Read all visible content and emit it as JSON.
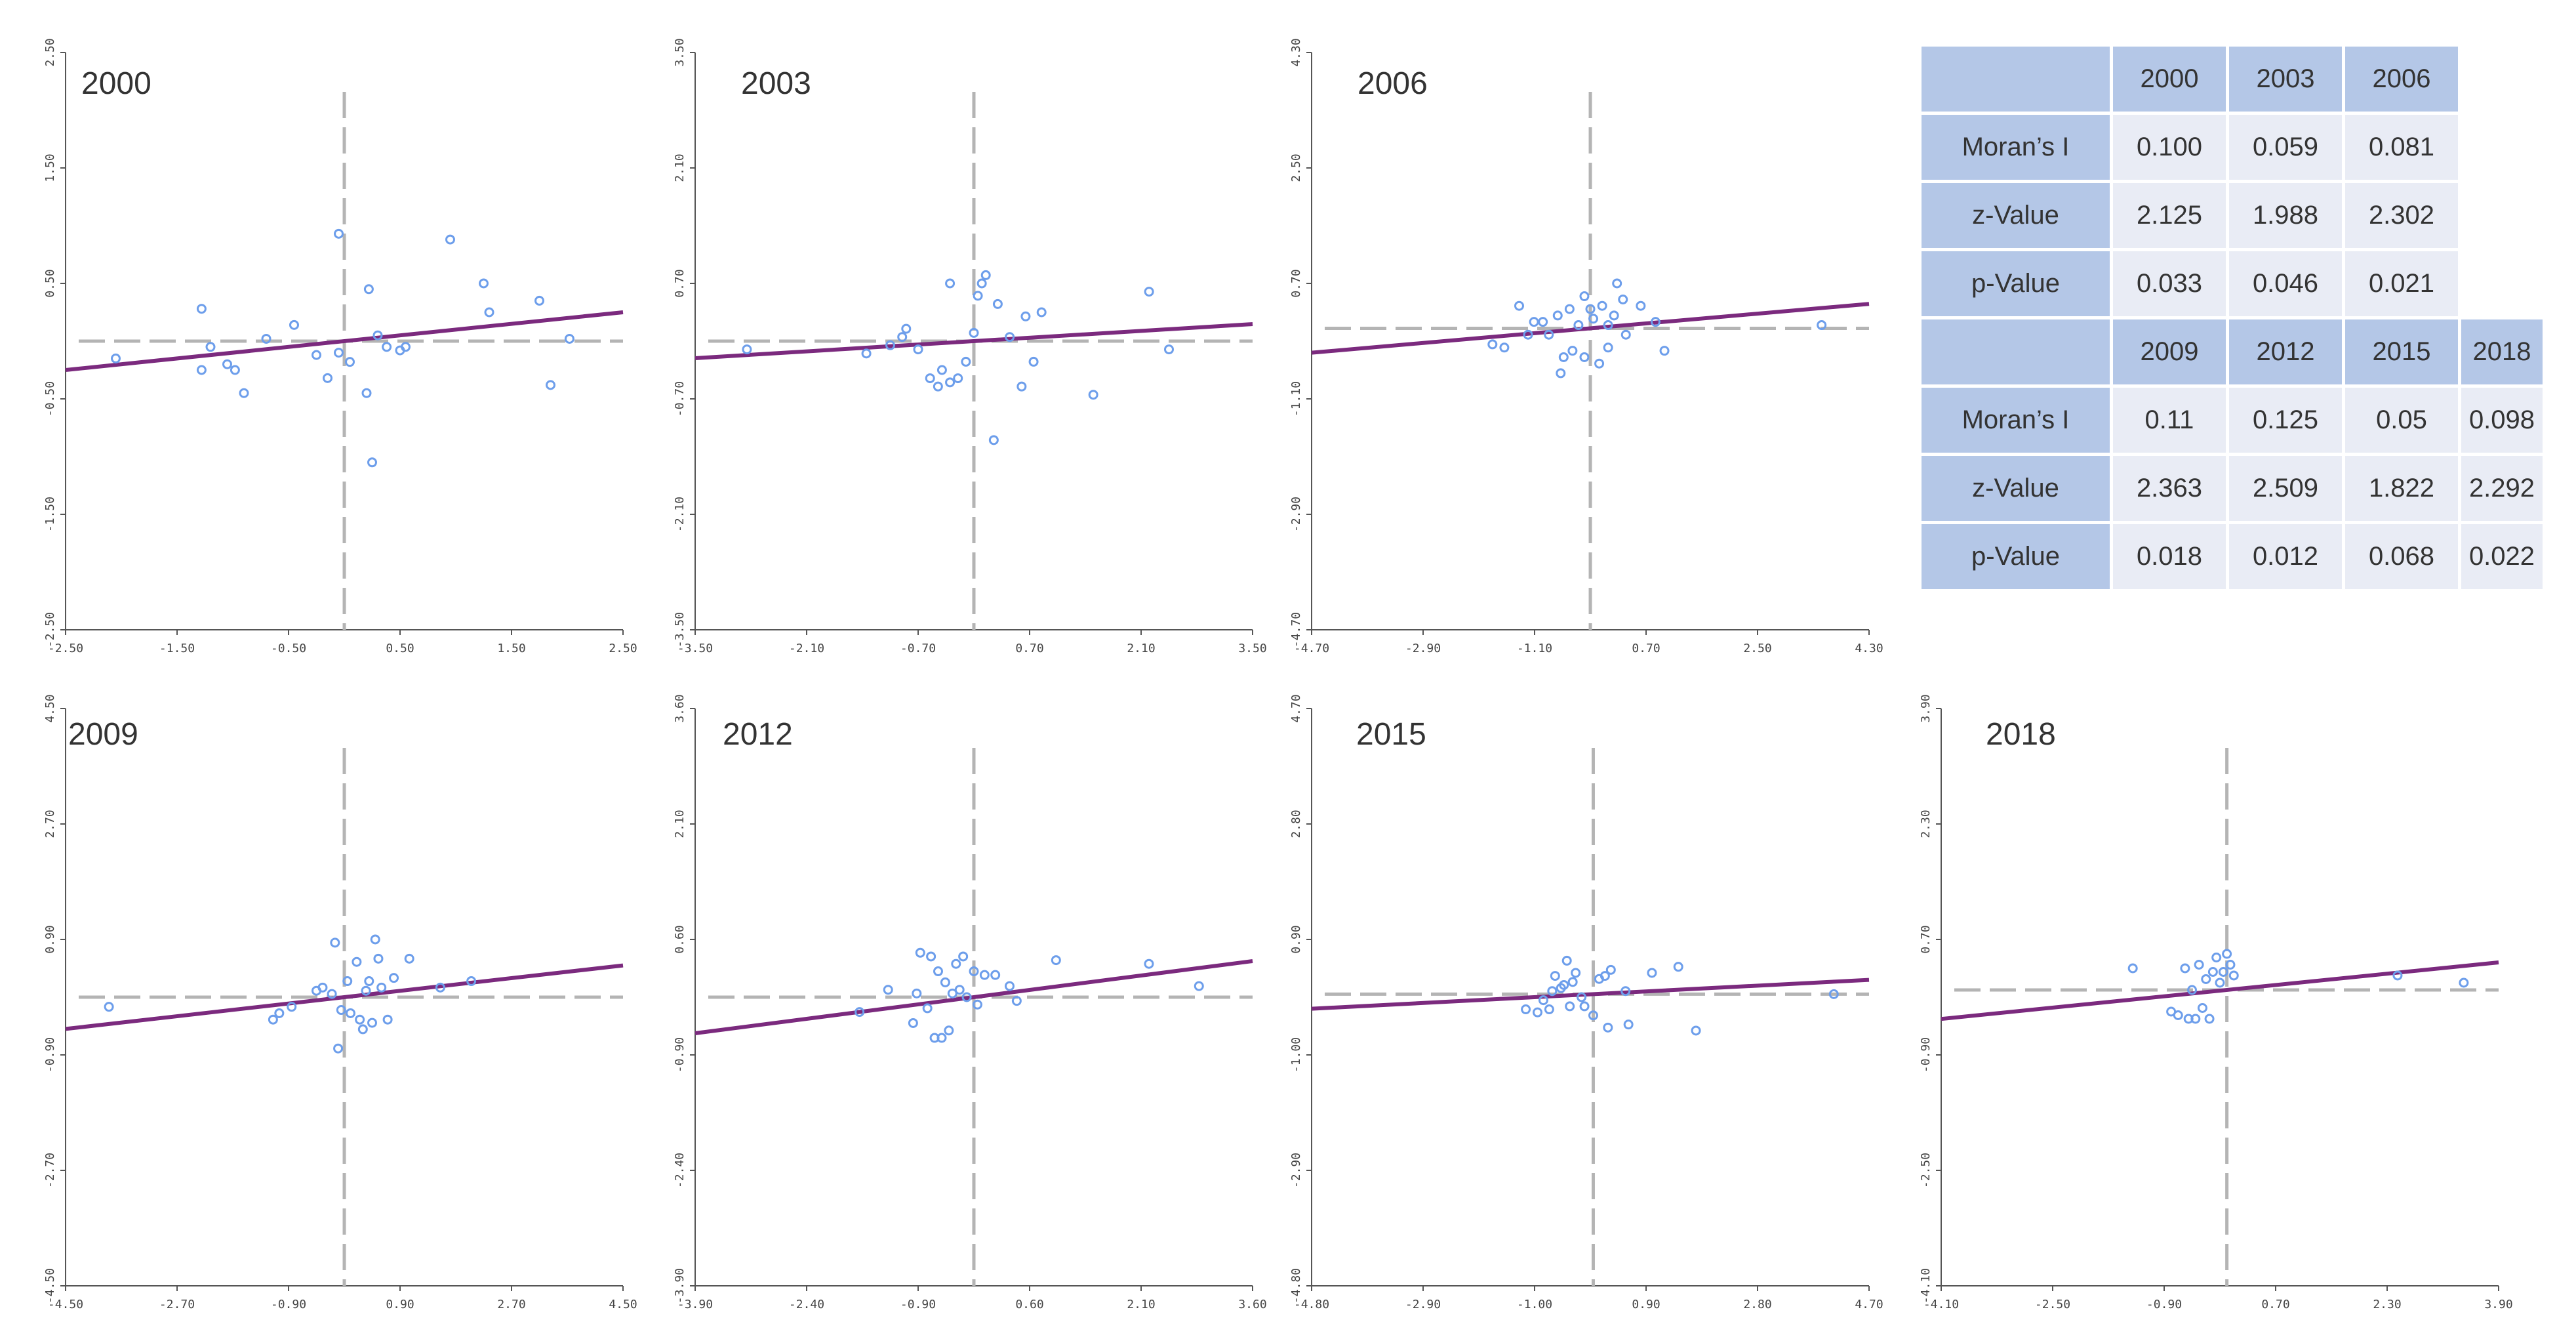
{
  "chart_data": [
    {
      "type": "scatter",
      "title": "2000",
      "xlim": [
        -2.5,
        2.5
      ],
      "ylim": [
        -2.5,
        2.5
      ],
      "xticks": [
        "-2.50",
        "-1.50",
        "-0.50",
        "0.50",
        "1.50",
        "2.50"
      ],
      "yticks": [
        "-2.50",
        "-1.50",
        "-0.50",
        "0.50",
        "1.50",
        "2.50"
      ],
      "mean_line": {
        "x": 0,
        "y": 0
      },
      "slope": 0.1,
      "intercept": 0,
      "points": [
        [
          -2.05,
          -0.15
        ],
        [
          -1.28,
          0.28
        ],
        [
          -1.2,
          -0.05
        ],
        [
          -1.28,
          -0.25
        ],
        [
          -1.05,
          -0.2
        ],
        [
          -0.98,
          -0.25
        ],
        [
          -0.9,
          -0.45
        ],
        [
          -0.7,
          0.02
        ],
        [
          -0.45,
          0.14
        ],
        [
          -0.25,
          -0.12
        ],
        [
          -0.15,
          -0.32
        ],
        [
          -0.05,
          -0.1
        ],
        [
          -0.05,
          0.93
        ],
        [
          0.05,
          -0.18
        ],
        [
          0.2,
          -0.45
        ],
        [
          0.22,
          0.45
        ],
        [
          0.25,
          -1.05
        ],
        [
          0.3,
          0.05
        ],
        [
          0.38,
          -0.05
        ],
        [
          0.5,
          -0.08
        ],
        [
          0.55,
          -0.05
        ],
        [
          0.95,
          0.88
        ],
        [
          1.25,
          0.5
        ],
        [
          1.3,
          0.25
        ],
        [
          1.75,
          0.35
        ],
        [
          1.85,
          -0.38
        ],
        [
          2.02,
          0.02
        ]
      ]
    },
    {
      "type": "scatter",
      "title": "2003",
      "xlim": [
        -3.5,
        3.5
      ],
      "ylim": [
        -3.5,
        3.5
      ],
      "xticks": [
        "-3.50",
        "-2.10",
        "-0.70",
        "0.70",
        "2.10",
        "3.50"
      ],
      "yticks": [
        "-3.50",
        "-2.10",
        "-0.70",
        "0.70",
        "2.10",
        "3.50"
      ],
      "mean_line": {
        "x": 0,
        "y": 0
      },
      "slope": 0.059,
      "intercept": 0,
      "points": [
        [
          -2.85,
          -0.1
        ],
        [
          -1.35,
          -0.15
        ],
        [
          -1.05,
          -0.05
        ],
        [
          -0.9,
          0.05
        ],
        [
          -0.85,
          0.15
        ],
        [
          -0.7,
          -0.1
        ],
        [
          -0.55,
          -0.45
        ],
        [
          -0.45,
          -0.55
        ],
        [
          -0.4,
          -0.35
        ],
        [
          -0.3,
          0.7
        ],
        [
          -0.3,
          -0.5
        ],
        [
          -0.2,
          -0.45
        ],
        [
          -0.1,
          -0.25
        ],
        [
          0,
          0.1
        ],
        [
          0.05,
          0.55
        ],
        [
          0.1,
          0.7
        ],
        [
          0.15,
          0.8
        ],
        [
          0.25,
          -1.2
        ],
        [
          0.3,
          0.45
        ],
        [
          0.45,
          0.05
        ],
        [
          0.6,
          -0.55
        ],
        [
          0.65,
          0.3
        ],
        [
          0.75,
          -0.25
        ],
        [
          0.85,
          0.35
        ],
        [
          1.5,
          -0.65
        ],
        [
          2.2,
          0.6
        ],
        [
          2.45,
          -0.1
        ]
      ]
    },
    {
      "type": "scatter",
      "title": "2006",
      "xlim": [
        -4.7,
        4.7
      ],
      "ylim": [
        -4.7,
        4.3
      ],
      "xticks": [
        "-4.70",
        "-2.90",
        "-1.10",
        "0.70",
        "2.50",
        "4.30"
      ],
      "yticks": [
        "-4.70",
        "-2.90",
        "-1.10",
        "0.70",
        "2.50",
        "4.30"
      ],
      "mean_line": {
        "x": 0,
        "y": 0
      },
      "slope": 0.081,
      "intercept": 0,
      "points": [
        [
          -1.65,
          -0.25
        ],
        [
          -1.45,
          -0.3
        ],
        [
          -1.2,
          0.35
        ],
        [
          -1.05,
          -0.1
        ],
        [
          -0.95,
          0.1
        ],
        [
          -0.8,
          0.1
        ],
        [
          -0.7,
          -0.1
        ],
        [
          -0.55,
          0.2
        ],
        [
          -0.5,
          -0.7
        ],
        [
          -0.45,
          -0.45
        ],
        [
          -0.35,
          0.3
        ],
        [
          -0.3,
          -0.35
        ],
        [
          -0.2,
          0.05
        ],
        [
          -0.1,
          0.5
        ],
        [
          -0.1,
          -0.45
        ],
        [
          0,
          0.3
        ],
        [
          0.05,
          0.15
        ],
        [
          0.15,
          -0.55
        ],
        [
          0.2,
          0.35
        ],
        [
          0.3,
          0.05
        ],
        [
          0.3,
          -0.3
        ],
        [
          0.4,
          0.2
        ],
        [
          0.45,
          0.7
        ],
        [
          0.55,
          0.45
        ],
        [
          0.6,
          -0.1
        ],
        [
          0.85,
          0.35
        ],
        [
          1.1,
          0.1
        ],
        [
          1.25,
          -0.35
        ],
        [
          3.9,
          0.05
        ]
      ]
    },
    {
      "type": "scatter",
      "title": "2009",
      "xlim": [
        -4.5,
        4.5
      ],
      "ylim": [
        -4.5,
        4.5
      ],
      "xticks": [
        "-4.50",
        "-2.70",
        "-0.90",
        "0.90",
        "2.70",
        "4.50"
      ],
      "yticks": [
        "-4.50",
        "-2.70",
        "-0.90",
        "0.90",
        "2.70",
        "4.50"
      ],
      "mean_line": {
        "x": 0,
        "y": 0
      },
      "slope": 0.11,
      "intercept": 0,
      "points": [
        [
          -3.8,
          -0.15
        ],
        [
          -1.15,
          -0.35
        ],
        [
          -1.05,
          -0.25
        ],
        [
          -0.85,
          -0.15
        ],
        [
          -0.45,
          0.1
        ],
        [
          -0.35,
          0.15
        ],
        [
          -0.2,
          0.05
        ],
        [
          -0.15,
          0.85
        ],
        [
          -0.1,
          -0.8
        ],
        [
          -0.05,
          -0.2
        ],
        [
          0.05,
          0.25
        ],
        [
          0.1,
          -0.25
        ],
        [
          0.2,
          0.55
        ],
        [
          0.25,
          -0.35
        ],
        [
          0.3,
          -0.5
        ],
        [
          0.35,
          0.1
        ],
        [
          0.4,
          0.25
        ],
        [
          0.45,
          -0.4
        ],
        [
          0.5,
          0.9
        ],
        [
          0.55,
          0.6
        ],
        [
          0.6,
          0.15
        ],
        [
          0.7,
          -0.35
        ],
        [
          0.8,
          0.3
        ],
        [
          1.05,
          0.6
        ],
        [
          1.55,
          0.15
        ],
        [
          2.05,
          0.25
        ]
      ]
    },
    {
      "type": "scatter",
      "title": "2012",
      "xlim": [
        -3.9,
        3.9
      ],
      "ylim": [
        -3.9,
        3.9
      ],
      "xticks": [
        "-3.90",
        "-2.40",
        "-0.90",
        "0.60",
        "2.10",
        "3.60"
      ],
      "yticks": [
        "-3.90",
        "-2.40",
        "-0.90",
        "0.60",
        "2.10",
        "3.60"
      ],
      "mean_line": {
        "x": 0,
        "y": 0
      },
      "slope": 0.125,
      "intercept": 0,
      "points": [
        [
          -1.6,
          -0.2
        ],
        [
          -1.2,
          0.1
        ],
        [
          -0.85,
          -0.35
        ],
        [
          -0.8,
          0.05
        ],
        [
          -0.75,
          0.6
        ],
        [
          -0.65,
          -0.15
        ],
        [
          -0.6,
          0.55
        ],
        [
          -0.55,
          -0.55
        ],
        [
          -0.5,
          0.35
        ],
        [
          -0.45,
          -0.55
        ],
        [
          -0.4,
          0.2
        ],
        [
          -0.35,
          -0.45
        ],
        [
          -0.3,
          0.05
        ],
        [
          -0.25,
          0.45
        ],
        [
          -0.2,
          0.1
        ],
        [
          -0.15,
          0.55
        ],
        [
          -0.1,
          0
        ],
        [
          0,
          0.35
        ],
        [
          0.05,
          -0.1
        ],
        [
          0.15,
          0.3
        ],
        [
          0.3,
          0.3
        ],
        [
          0.5,
          0.15
        ],
        [
          0.6,
          -0.05
        ],
        [
          1.15,
          0.5
        ],
        [
          2.45,
          0.45
        ],
        [
          3.15,
          0.15
        ]
      ]
    },
    {
      "type": "scatter",
      "title": "2015",
      "xlim": [
        -4.8,
        4.7
      ],
      "ylim": [
        -4.8,
        4.7
      ],
      "xticks": [
        "-4.80",
        "-2.90",
        "-1.00",
        "0.90",
        "2.80",
        "4.70"
      ],
      "yticks": [
        "-4.80",
        "-2.90",
        "-1.00",
        "0.90",
        "2.80",
        "4.70"
      ],
      "mean_line": {
        "x": 0,
        "y": 0
      },
      "slope": 0.05,
      "intercept": 0,
      "points": [
        [
          -1.15,
          -0.25
        ],
        [
          -0.95,
          -0.3
        ],
        [
          -0.85,
          -0.1
        ],
        [
          -0.75,
          -0.25
        ],
        [
          -0.7,
          0.05
        ],
        [
          -0.65,
          0.3
        ],
        [
          -0.55,
          0.1
        ],
        [
          -0.5,
          0.15
        ],
        [
          -0.45,
          0.55
        ],
        [
          -0.4,
          -0.2
        ],
        [
          -0.35,
          0.2
        ],
        [
          -0.3,
          0.35
        ],
        [
          -0.2,
          -0.05
        ],
        [
          -0.15,
          -0.2
        ],
        [
          0,
          -0.35
        ],
        [
          0.1,
          0.25
        ],
        [
          0.2,
          0.3
        ],
        [
          0.25,
          -0.55
        ],
        [
          0.3,
          0.4
        ],
        [
          0.55,
          0.05
        ],
        [
          0.6,
          -0.5
        ],
        [
          1.0,
          0.35
        ],
        [
          1.45,
          0.45
        ],
        [
          1.75,
          -0.6
        ],
        [
          4.1,
          0
        ]
      ]
    },
    {
      "type": "scatter",
      "title": "2018",
      "xlim": [
        -4.1,
        3.9
      ],
      "ylim": [
        -4.1,
        3.9
      ],
      "xticks": [
        "-4.10",
        "-2.50",
        "-0.90",
        "0.70",
        "2.30",
        "3.90"
      ],
      "yticks": [
        "-4.10",
        "-2.50",
        "-0.90",
        "0.70",
        "2.30",
        "3.90"
      ],
      "mean_line": {
        "x": 0,
        "y": 0
      },
      "slope": 0.098,
      "intercept": 0,
      "points": [
        [
          -1.35,
          0.3
        ],
        [
          -0.8,
          -0.3
        ],
        [
          -0.7,
          -0.35
        ],
        [
          -0.6,
          0.3
        ],
        [
          -0.55,
          -0.4
        ],
        [
          -0.5,
          0
        ],
        [
          -0.45,
          -0.4
        ],
        [
          -0.4,
          0.35
        ],
        [
          -0.35,
          -0.25
        ],
        [
          -0.3,
          0.15
        ],
        [
          -0.25,
          -0.4
        ],
        [
          -0.2,
          0.25
        ],
        [
          -0.15,
          0.45
        ],
        [
          -0.1,
          0.1
        ],
        [
          -0.05,
          0.25
        ],
        [
          0,
          0.5
        ],
        [
          0.05,
          0.35
        ],
        [
          0.1,
          0.2
        ],
        [
          2.45,
          0.2
        ],
        [
          3.4,
          0.1
        ]
      ]
    }
  ],
  "stats_table": {
    "block1": {
      "years": [
        "2000",
        "2003",
        "2006"
      ],
      "rows": [
        {
          "label": "Moran’s I",
          "values": [
            "0.100",
            "0.059",
            "0.081"
          ]
        },
        {
          "label": "z-Value",
          "values": [
            "2.125",
            "1.988",
            "2.302"
          ]
        },
        {
          "label": "p-Value",
          "values": [
            "0.033",
            "0.046",
            "0.021"
          ]
        }
      ]
    },
    "block2": {
      "years": [
        "2009",
        "2012",
        "2015",
        "2018"
      ],
      "rows": [
        {
          "label": "Moran’s I",
          "values": [
            "0.11",
            "0.125",
            "0.05",
            "0.098"
          ]
        },
        {
          "label": "z-Value",
          "values": [
            "2.363",
            "2.509",
            "1.822",
            "2.292"
          ]
        },
        {
          "label": "p-Value",
          "values": [
            "0.018",
            "0.012",
            "0.068",
            "0.022"
          ]
        }
      ]
    }
  },
  "colors": {
    "point": "#6d9eeb",
    "regression": "#7b2a7e",
    "dashed": "#b4b4b4",
    "axis": "#555555",
    "table_header": "#b4c7e7",
    "table_cell": "#e9ecf5"
  }
}
